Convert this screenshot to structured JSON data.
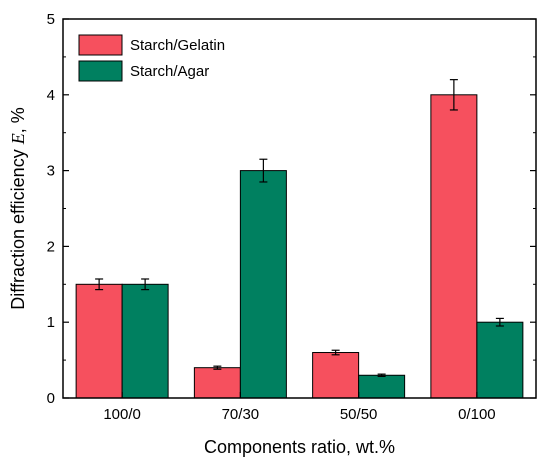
{
  "chart_data": {
    "type": "bar",
    "xlabel": "Components ratio, wt.%",
    "ylabel_prefix": "Diffraction efficiency ",
    "ylabel_var": "E",
    "ylabel_suffix": ", %",
    "categories": [
      "100/0",
      "70/30",
      "50/50",
      "0/100"
    ],
    "ylim": [
      0,
      5
    ],
    "yticks": [
      "0",
      "1",
      "2",
      "3",
      "4",
      "5"
    ],
    "legend_position": "top-left",
    "grid": false,
    "series": [
      {
        "name": "Starch/Gelatin",
        "color": "#f6505e",
        "values": [
          1.5,
          0.4,
          0.6,
          4.0
        ],
        "errors": [
          0.07,
          0.02,
          0.03,
          0.2
        ]
      },
      {
        "name": "Starch/Agar",
        "color": "#008060",
        "values": [
          1.5,
          3.0,
          0.3,
          1.0
        ],
        "errors": [
          0.07,
          0.15,
          0.015,
          0.05
        ]
      }
    ]
  }
}
